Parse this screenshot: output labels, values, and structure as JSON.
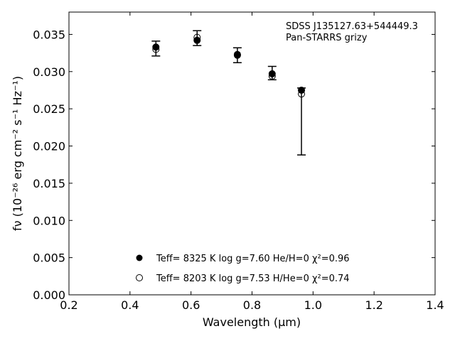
{
  "chart_data": {
    "type": "scatter",
    "xlabel": "Wavelength (μm)",
    "ylabel": "fν (10⁻²⁶ erg cm⁻² s⁻¹ Hz⁻¹)",
    "xlim": [
      0.2,
      1.4
    ],
    "ylim": [
      0.0,
      0.038
    ],
    "xticks": [
      "0.2",
      "0.4",
      "0.6",
      "0.8",
      "1.0",
      "1.2",
      "1.4"
    ],
    "yticks": [
      "0.000",
      "0.005",
      "0.010",
      "0.015",
      "0.020",
      "0.025",
      "0.030",
      "0.035"
    ],
    "annotations": [
      "SDSS J135127.63+544449.3",
      "Pan-STARRS grizy"
    ],
    "grid": false,
    "series": [
      {
        "name": "Teff= 8325 K  log g=7.60  He/H=0  χ²=0.96",
        "marker": "filled-circle",
        "x": [
          0.485,
          0.62,
          0.752,
          0.866,
          0.962
        ],
        "y": [
          0.0333,
          0.0342,
          0.0323,
          0.0297,
          0.0275
        ]
      },
      {
        "name": "Teff= 8203 K  log g=7.53  H/He=0  χ²=0.74",
        "marker": "open-circle",
        "x": [
          0.485,
          0.62,
          0.752,
          0.866,
          0.962
        ],
        "y": [
          0.033,
          0.0346,
          0.0322,
          0.0294,
          0.027
        ]
      }
    ],
    "errorbars": {
      "x": [
        0.485,
        0.62,
        0.752,
        0.866,
        0.962
      ],
      "y": [
        0.0331,
        0.0345,
        0.0322,
        0.0298,
        0.0273
      ],
      "yerr": [
        0.001,
        0.001,
        0.001,
        0.0009,
        0.0085
      ],
      "yerr_upper": [
        0.001,
        0.001,
        0.001,
        0.0009,
        0.0005
      ]
    },
    "legend_location": "lower-center",
    "colors": {
      "marker": "#000000",
      "axis": "#000000",
      "background": "#ffffff"
    }
  }
}
